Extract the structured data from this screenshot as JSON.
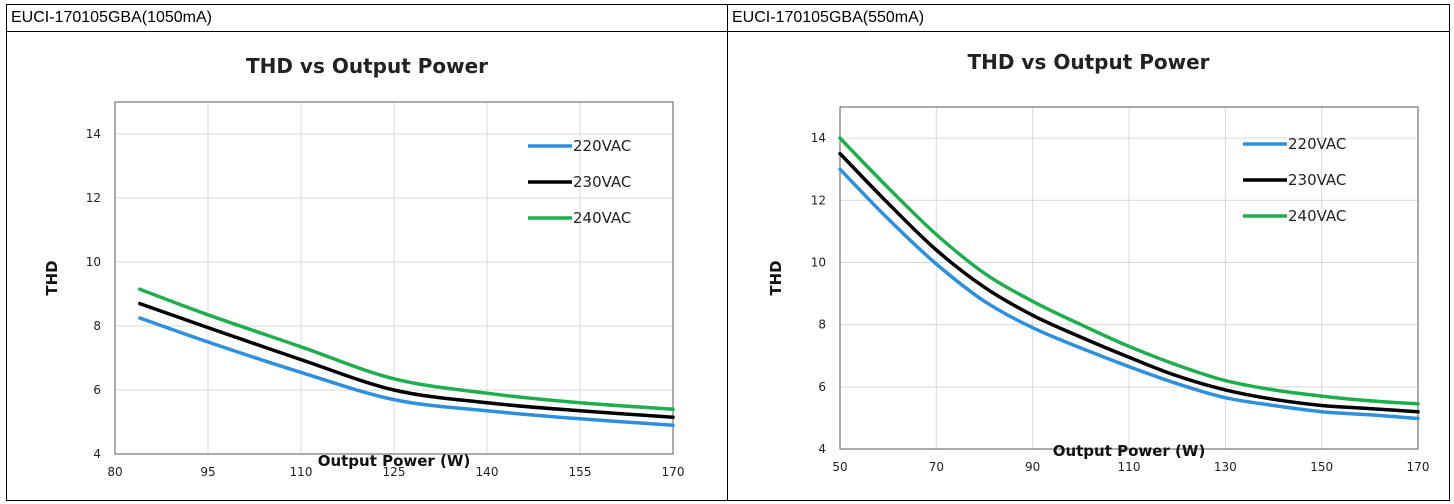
{
  "panels": [
    {
      "caption": "EUCI-170105GBA(1050mA)"
    },
    {
      "caption": "EUCI-170105GBA(550mA)"
    }
  ],
  "chart_data": [
    {
      "type": "line",
      "title": "THD vs Output Power",
      "xlabel": "Output Power (W)",
      "ylabel": "THD",
      "xlim": [
        80,
        170
      ],
      "ylim": [
        4,
        15
      ],
      "xticks": [
        80,
        95,
        110,
        125,
        140,
        155,
        170
      ],
      "yticks": [
        4,
        6,
        8,
        10,
        12,
        14
      ],
      "grid": true,
      "legend": "top-right",
      "series": [
        {
          "name": "220VAC",
          "color": "#2e8fdc",
          "x": [
            84,
            95,
            110,
            125,
            140,
            155,
            170
          ],
          "y": [
            8.25,
            7.5,
            6.55,
            5.7,
            5.35,
            5.1,
            4.9
          ]
        },
        {
          "name": "230VAC",
          "color": "#000000",
          "x": [
            84,
            95,
            110,
            125,
            140,
            155,
            170
          ],
          "y": [
            8.7,
            7.95,
            6.95,
            6.0,
            5.6,
            5.35,
            5.15
          ]
        },
        {
          "name": "240VAC",
          "color": "#1fae4e",
          "x": [
            84,
            95,
            110,
            125,
            140,
            155,
            170
          ],
          "y": [
            9.15,
            8.35,
            7.35,
            6.35,
            5.9,
            5.6,
            5.4
          ]
        }
      ]
    },
    {
      "type": "line",
      "title": "THD vs Output Power",
      "xlabel": "Output Power (W)",
      "ylabel": "THD",
      "xlim": [
        50,
        170
      ],
      "ylim": [
        4,
        15
      ],
      "xticks": [
        50,
        70,
        90,
        110,
        130,
        150,
        170
      ],
      "yticks": [
        4,
        6,
        8,
        10,
        12,
        14
      ],
      "grid": true,
      "legend": "top-right",
      "series": [
        {
          "name": "220VAC",
          "color": "#2e8fdc",
          "x": [
            50,
            60,
            70,
            80,
            90,
            100,
            110,
            120,
            130,
            140,
            150,
            160,
            170
          ],
          "y": [
            13.0,
            11.4,
            9.95,
            8.75,
            7.9,
            7.25,
            6.65,
            6.1,
            5.65,
            5.4,
            5.2,
            5.1,
            4.98
          ]
        },
        {
          "name": "230VAC",
          "color": "#000000",
          "x": [
            50,
            60,
            70,
            80,
            90,
            100,
            110,
            120,
            130,
            140,
            150,
            160,
            170
          ],
          "y": [
            13.5,
            11.9,
            10.4,
            9.2,
            8.3,
            7.6,
            6.95,
            6.35,
            5.9,
            5.6,
            5.4,
            5.3,
            5.2
          ]
        },
        {
          "name": "240VAC",
          "color": "#1fae4e",
          "x": [
            50,
            60,
            70,
            80,
            90,
            100,
            110,
            120,
            130,
            140,
            150,
            160,
            170
          ],
          "y": [
            14.0,
            12.4,
            10.9,
            9.65,
            8.75,
            8.0,
            7.3,
            6.7,
            6.2,
            5.9,
            5.7,
            5.55,
            5.45
          ]
        }
      ]
    }
  ]
}
